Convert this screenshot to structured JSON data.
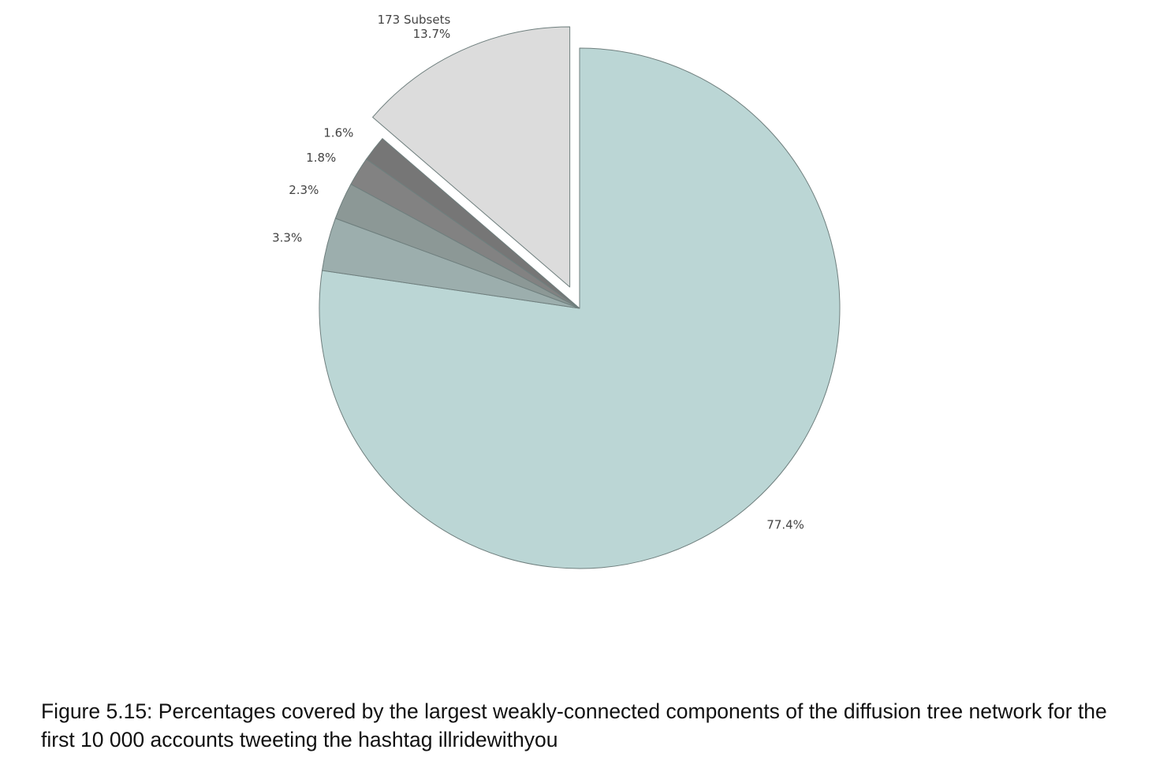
{
  "chart_data": {
    "type": "pie",
    "title": "",
    "slices": [
      {
        "label": "",
        "value": 77.4,
        "display": "77.4%",
        "color": "#bbd6d5",
        "exploded": false
      },
      {
        "label": "",
        "value": 3.3,
        "display": "3.3%",
        "color": "#9caead",
        "exploded": false
      },
      {
        "label": "",
        "value": 2.3,
        "display": "2.3%",
        "color": "#8c9896",
        "exploded": false
      },
      {
        "label": "",
        "value": 1.8,
        "display": "1.8%",
        "color": "#828282",
        "exploded": false
      },
      {
        "label": "",
        "value": 1.6,
        "display": "1.6%",
        "color": "#767676",
        "exploded": false
      },
      {
        "label": "173 Subsets",
        "value": 13.7,
        "display": "13.7%",
        "color": "#dcdcdc",
        "exploded": true
      }
    ],
    "start_angle_deg": 90,
    "direction": "clockwise",
    "edge_color": "#6f7f7e"
  },
  "caption": {
    "text": "Figure 5.15: Percentages covered by the largest weakly-connected components of the diffusion tree network for the first 10 000 accounts tweeting the hashtag illridewithyou"
  }
}
